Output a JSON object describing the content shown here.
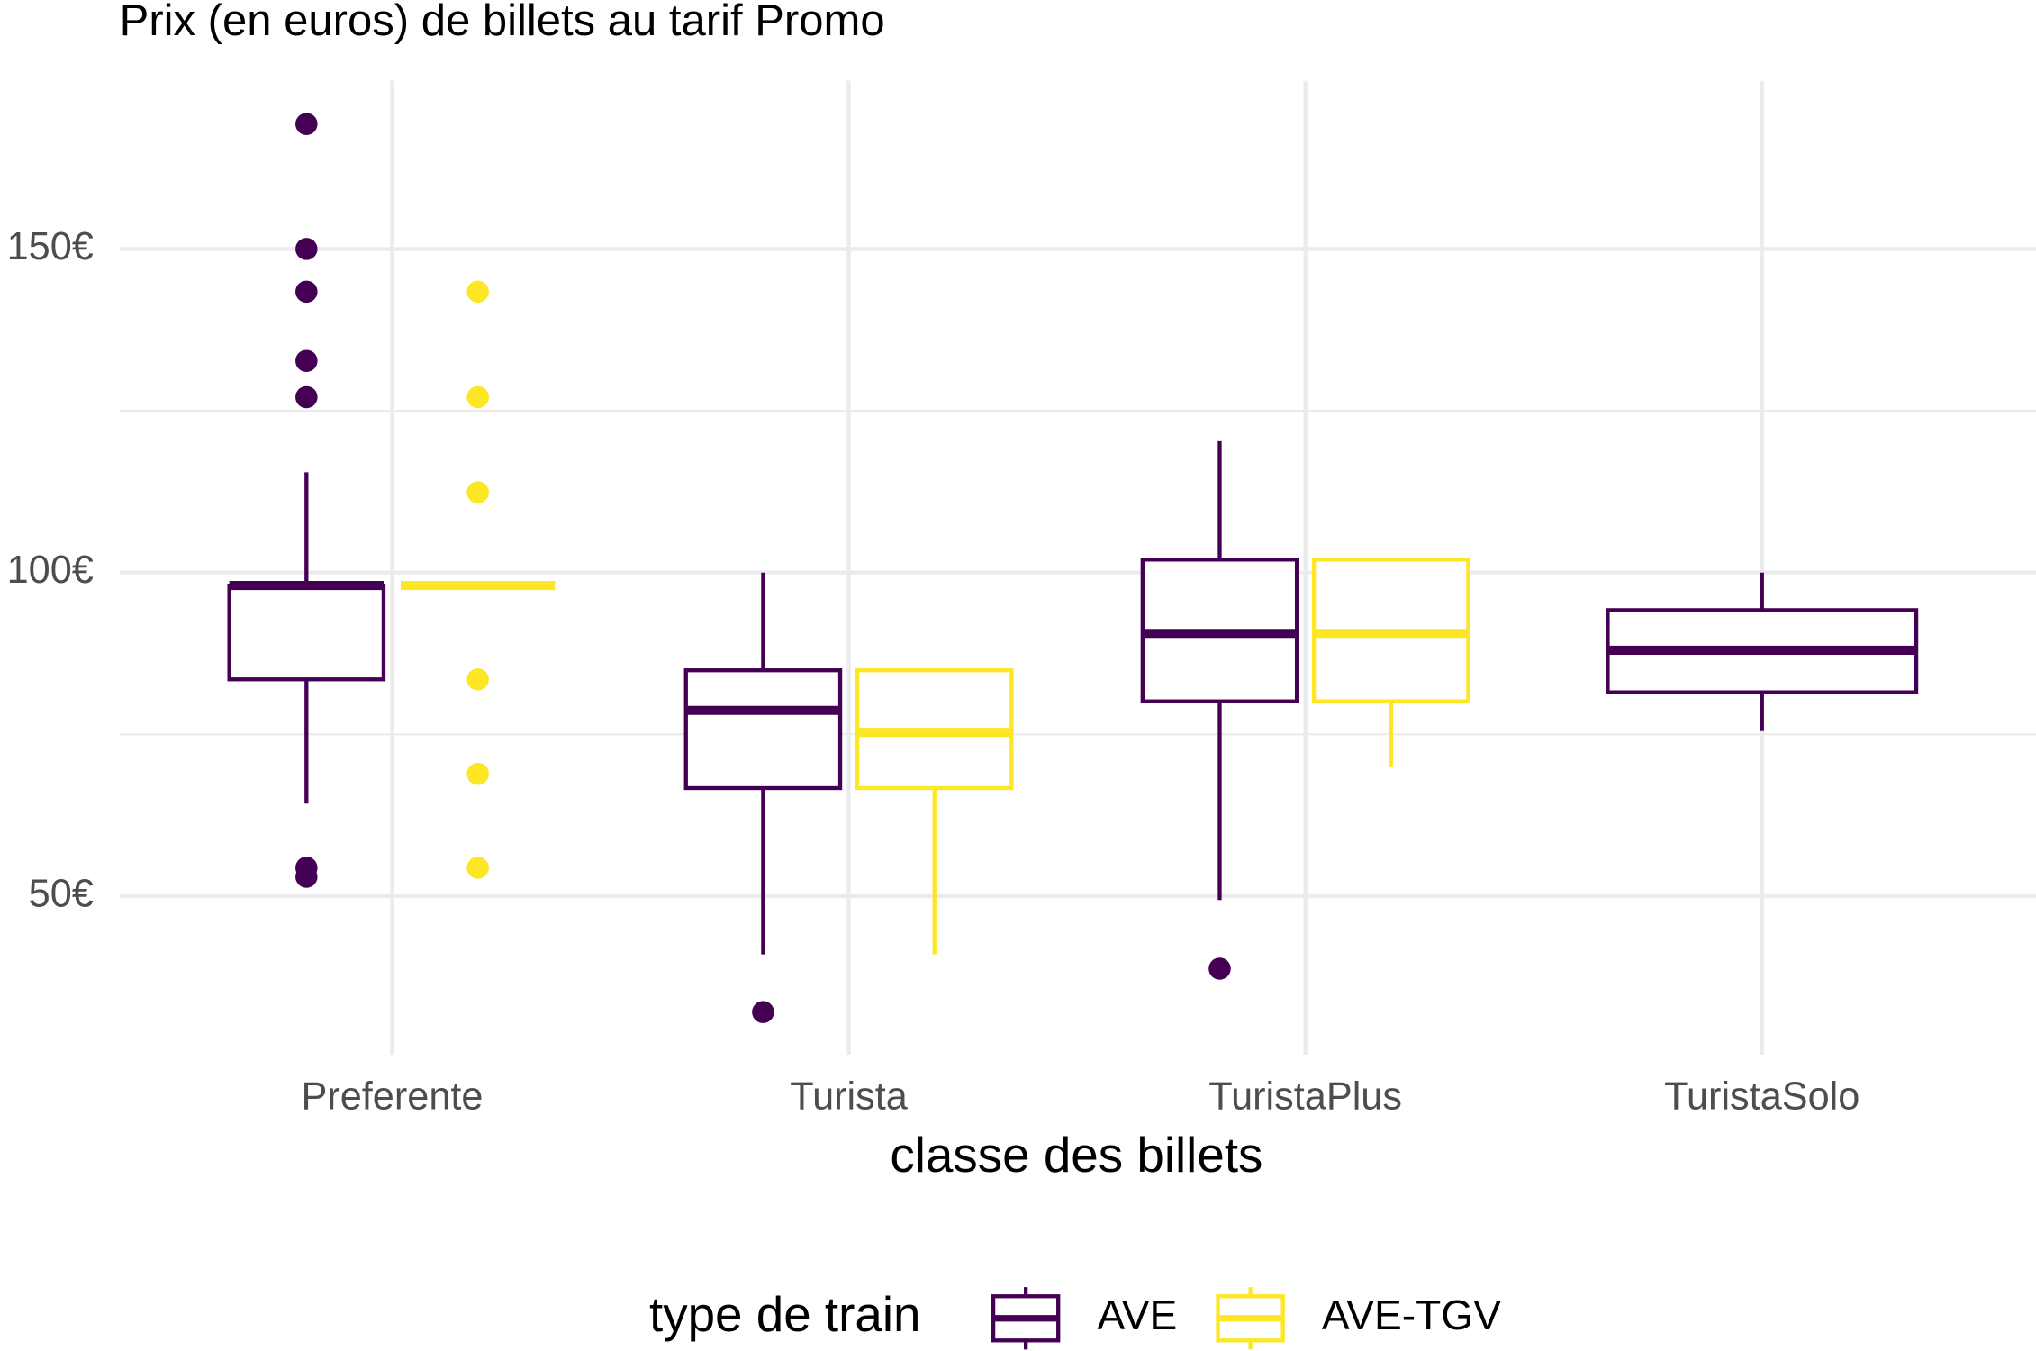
{
  "chart_data": {
    "type": "boxplot",
    "title": "Prix (en euros) de billets au tarif Promo",
    "x_label": "classe des billets",
    "legend_title": "type de train",
    "legend_position": "bottom",
    "grid": true,
    "categories": [
      "Preferente",
      "Turista",
      "TuristaPlus",
      "TuristaSolo"
    ],
    "ylim": [
      25.5,
      176
    ],
    "yticks": [
      {
        "value": 50,
        "label": "50€"
      },
      {
        "value": 100,
        "label": "100€"
      },
      {
        "value": 150,
        "label": "150€"
      }
    ],
    "minor_yticks": [
      75,
      125
    ],
    "series": [
      {
        "name": "AVE",
        "color": "#440154",
        "boxes": [
          {
            "low": 64.3,
            "q1": 83.5,
            "median": 98,
            "q3": 98,
            "high": 115.5,
            "outliers": [
              169.3,
              150,
              143.4,
              132.7,
              127.1,
              54.4,
              53.0
            ]
          },
          {
            "low": 41.0,
            "q1": 66.7,
            "median": 78.7,
            "q3": 84.9,
            "high": 100,
            "outliers": [
              32.1
            ]
          },
          {
            "low": 49.4,
            "q1": 80.1,
            "median": 90.6,
            "q3": 102,
            "high": 120.3,
            "outliers": [
              38.8
            ]
          },
          {
            "low": 75.5,
            "q1": 81.5,
            "median": 88,
            "q3": 94.2,
            "high": 100,
            "outliers": []
          }
        ]
      },
      {
        "name": "AVE-TGV",
        "color": "#FDE725",
        "boxes": [
          {
            "low": 98,
            "q1": 98,
            "median": 98,
            "q3": 98,
            "high": 98,
            "outliers": [
              143.4,
              127.1,
              112.4,
              83.5,
              68.9,
              54.4
            ]
          },
          {
            "low": 41.0,
            "q1": 66.7,
            "median": 75.3,
            "q3": 84.9,
            "high": 84.9,
            "outliers": []
          },
          {
            "low": 69.9,
            "q1": 80.1,
            "median": 90.6,
            "q3": 102,
            "high": 102,
            "outliers": []
          },
          null
        ]
      }
    ]
  }
}
